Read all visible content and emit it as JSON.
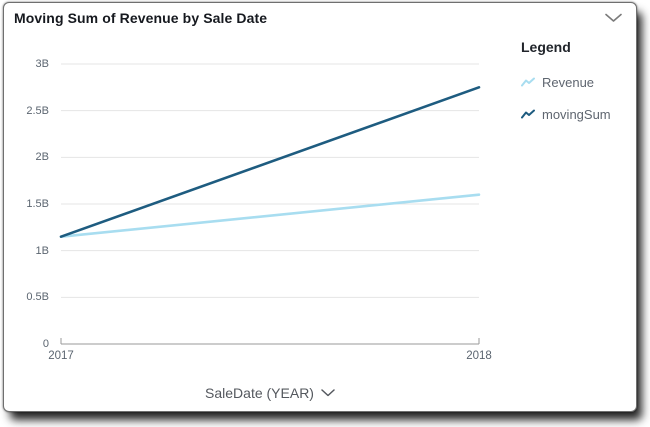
{
  "header": {
    "title": "Moving Sum of Revenue by Sale Date",
    "menu_icon": "chevron-down-icon"
  },
  "legend": {
    "title": "Legend",
    "position": "right",
    "items": [
      {
        "label": "Revenue",
        "color": "#a8ddf0",
        "icon": "line-series-icon"
      },
      {
        "label": "movingSum",
        "color": "#1e5c80",
        "icon": "line-series-icon"
      }
    ]
  },
  "x_axis": {
    "label": "SaleDate (YEAR)",
    "dropdown_icon": "chevron-down-icon"
  },
  "colors": {
    "gridline": "#e4e4e4",
    "axis_line": "#9a9a9a",
    "tick_text": "#5b6570",
    "title_text": "#16191f",
    "chevron": "#7b7b7b"
  },
  "chart_data": {
    "type": "line",
    "title": "Moving Sum of Revenue by Sale Date",
    "xlabel": "SaleDate (YEAR)",
    "ylabel": "",
    "x": [
      2017,
      2018
    ],
    "x_tick_labels": [
      "2017",
      "2018"
    ],
    "series": [
      {
        "name": "Revenue",
        "color": "#a8ddf0",
        "values": [
          1150000000,
          1600000000
        ]
      },
      {
        "name": "movingSum",
        "color": "#1e5c80",
        "values": [
          1150000000,
          2750000000
        ]
      }
    ],
    "ylim": [
      0,
      3000000000
    ],
    "y_ticks": [
      {
        "value": 0,
        "label": "0"
      },
      {
        "value": 500000000,
        "label": "0.5B"
      },
      {
        "value": 1000000000,
        "label": "1B"
      },
      {
        "value": 1500000000,
        "label": "1.5B"
      },
      {
        "value": 2000000000,
        "label": "2B"
      },
      {
        "value": 2500000000,
        "label": "2.5B"
      },
      {
        "value": 3000000000,
        "label": "3B"
      }
    ],
    "grid": true,
    "legend_position": "right"
  }
}
